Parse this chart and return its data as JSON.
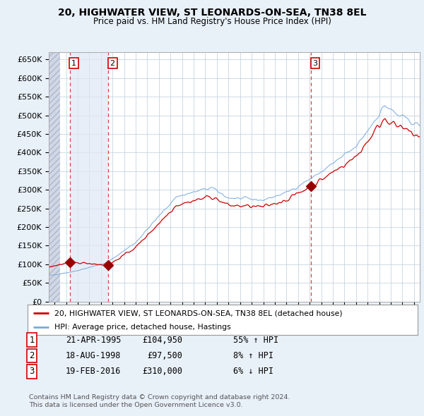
{
  "title": "20, HIGHWATER VIEW, ST LEONARDS-ON-SEA, TN38 8EL",
  "subtitle": "Price paid vs. HM Land Registry's House Price Index (HPI)",
  "ylim": [
    0,
    670000
  ],
  "yticks": [
    0,
    50000,
    100000,
    150000,
    200000,
    250000,
    300000,
    350000,
    400000,
    450000,
    500000,
    550000,
    600000,
    650000
  ],
  "ytick_labels": [
    "£0",
    "£50K",
    "£100K",
    "£150K",
    "£200K",
    "£250K",
    "£300K",
    "£350K",
    "£400K",
    "£450K",
    "£500K",
    "£550K",
    "£600K",
    "£650K"
  ],
  "bg_color": "#e8f0f8",
  "plot_bg_color": "#ffffff",
  "grid_color": "#c8d4e0",
  "hatch_color": "#d0d8e8",
  "shade_color": "#dde8f5",
  "sale_line_color": "#cc0000",
  "hpi_line_color": "#7aaadd",
  "sale_dot_color": "#990000",
  "dashed_line_color": "#dd4444",
  "transactions": [
    {
      "date_x": 1995.3,
      "price": 104950,
      "label": "1"
    },
    {
      "date_x": 1998.63,
      "price": 97500,
      "label": "2"
    },
    {
      "date_x": 2016.12,
      "price": 310000,
      "label": "3"
    }
  ],
  "legend_sale_label": "20, HIGHWATER VIEW, ST LEONARDS-ON-SEA, TN38 8EL (detached house)",
  "legend_hpi_label": "HPI: Average price, detached house, Hastings",
  "table_rows": [
    {
      "num": "1",
      "date": "21-APR-1995",
      "price": "£104,950",
      "change": "55% ↑ HPI"
    },
    {
      "num": "2",
      "date": "18-AUG-1998",
      "price": "£97,500",
      "change": "8% ↑ HPI"
    },
    {
      "num": "3",
      "date": "19-FEB-2016",
      "price": "£310,000",
      "change": "6% ↓ HPI"
    }
  ],
  "footer": "Contains HM Land Registry data © Crown copyright and database right 2024.\nThis data is licensed under the Open Government Licence v3.0.",
  "xlim_start": 1993.5,
  "xlim_end": 2025.5
}
